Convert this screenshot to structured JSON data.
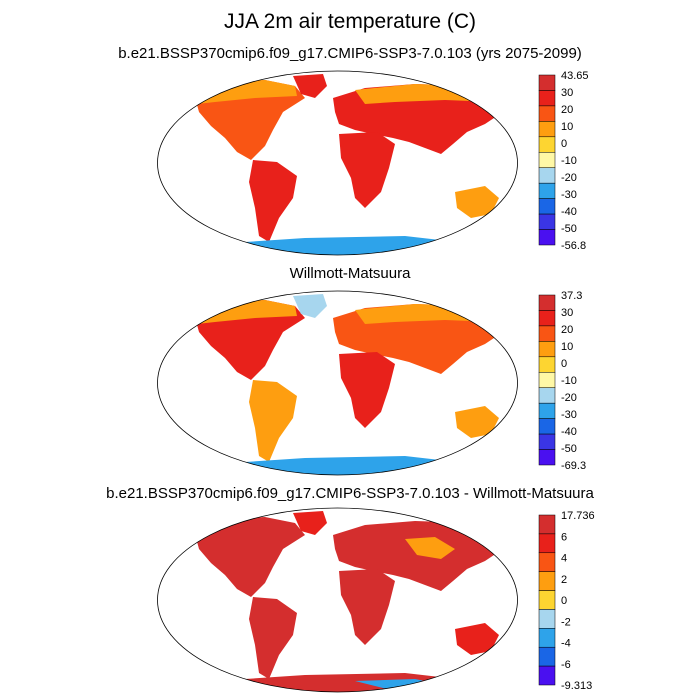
{
  "figure": {
    "title": "JJA 2m air temperature (C)"
  },
  "panels": [
    {
      "title": "b.e21.BSSP370cmip6.f09_g17.CMIP6-SSP3-7.0.103 (yrs 2075-2099)",
      "colorbar": {
        "labels": [
          "43.65",
          "30",
          "20",
          "10",
          "0",
          "-10",
          "-20",
          "-30",
          "-40",
          "-50",
          "-56.8"
        ],
        "colors": [
          "#d42e2e",
          "#e8211b",
          "#f95514",
          "#fe9e10",
          "#fdd531",
          "#fff8a6",
          "#a7d6ee",
          "#2ea3ea",
          "#1a66e6",
          "#3a35e5",
          "#4a10f0"
        ]
      }
    },
    {
      "title": "Willmott-Matsuura",
      "colorbar": {
        "labels": [
          "37.3",
          "30",
          "20",
          "10",
          "0",
          "-10",
          "-20",
          "-30",
          "-40",
          "-50",
          "-69.3"
        ],
        "colors": [
          "#d42e2e",
          "#e8211b",
          "#f95514",
          "#fe9e10",
          "#fdd531",
          "#fff8a6",
          "#a7d6ee",
          "#2ea3ea",
          "#1a66e6",
          "#3a35e5",
          "#4a10f0"
        ]
      }
    },
    {
      "title": "b.e21.BSSP370cmip6.f09_g17.CMIP6-SSP3-7.0.103 - Willmott-Matsuura",
      "colorbar": {
        "labels": [
          "17.736",
          "6",
          "4",
          "2",
          "0",
          "-2",
          "-4",
          "-6",
          "-9.313"
        ],
        "colors": [
          "#d42e2e",
          "#e8211b",
          "#f95514",
          "#fe9e10",
          "#fdd531",
          "#a7d6ee",
          "#2ea3ea",
          "#1a66e6",
          "#4a10f0"
        ]
      }
    }
  ]
}
